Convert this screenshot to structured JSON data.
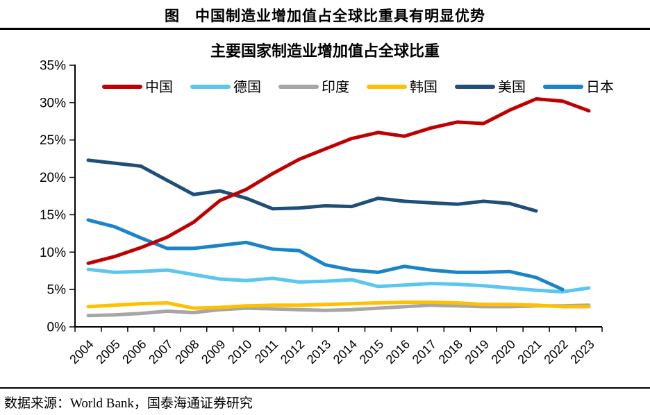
{
  "figure": {
    "title": "图　中国制造业增加值占全球比重具有明显优势",
    "source": "数据来源：World Bank，国泰海通证券研究"
  },
  "chart_data": {
    "type": "line",
    "title": "主要国家制造业增加值占全球比重",
    "x": [
      2004,
      2005,
      2006,
      2007,
      2008,
      2009,
      2010,
      2011,
      2012,
      2013,
      2014,
      2015,
      2016,
      2017,
      2018,
      2019,
      2020,
      2021,
      2022,
      2023
    ],
    "series": [
      {
        "name": "中国",
        "color": "#C00000",
        "values": [
          8.5,
          9.4,
          10.6,
          12.0,
          14.0,
          16.9,
          18.4,
          20.5,
          22.4,
          23.8,
          25.2,
          26.0,
          25.5,
          26.6,
          27.4,
          27.2,
          29.0,
          30.5,
          30.2,
          28.9
        ]
      },
      {
        "name": "德国",
        "color": "#5BC6F0",
        "values": [
          7.7,
          7.3,
          7.4,
          7.6,
          7.0,
          6.4,
          6.2,
          6.5,
          6.0,
          6.1,
          6.3,
          5.4,
          5.6,
          5.8,
          5.7,
          5.5,
          5.2,
          4.9,
          4.7,
          5.2
        ]
      },
      {
        "name": "印度",
        "color": "#A6A6A6",
        "values": [
          1.5,
          1.6,
          1.8,
          2.1,
          1.9,
          2.3,
          2.5,
          2.4,
          2.3,
          2.2,
          2.3,
          2.5,
          2.7,
          2.9,
          2.8,
          2.7,
          2.7,
          2.8,
          2.8,
          2.9
        ]
      },
      {
        "name": "韩国",
        "color": "#FFC000",
        "values": [
          2.7,
          2.9,
          3.1,
          3.2,
          2.5,
          2.6,
          2.8,
          2.9,
          2.9,
          3.0,
          3.1,
          3.2,
          3.3,
          3.3,
          3.2,
          3.0,
          3.0,
          2.9,
          2.7,
          2.7
        ]
      },
      {
        "name": "美国",
        "color": "#1F4E79",
        "values": [
          22.3,
          21.9,
          21.5,
          19.6,
          17.7,
          18.2,
          17.2,
          15.8,
          15.9,
          16.2,
          16.1,
          17.2,
          16.8,
          16.6,
          16.4,
          16.8,
          16.5,
          15.5,
          null,
          null
        ]
      },
      {
        "name": "日本",
        "color": "#1A84C8",
        "values": [
          14.3,
          13.4,
          11.9,
          10.5,
          10.5,
          10.9,
          11.3,
          10.4,
          10.2,
          8.3,
          7.6,
          7.3,
          8.1,
          7.6,
          7.3,
          7.3,
          7.4,
          6.6,
          5.0,
          null
        ]
      }
    ],
    "ylim": [
      0,
      35
    ],
    "ytick_step": 5,
    "ytick_suffix": "%",
    "xlabel": "",
    "ylabel": "",
    "legend_position": "top",
    "grid": false,
    "axis_color": "#000000"
  }
}
